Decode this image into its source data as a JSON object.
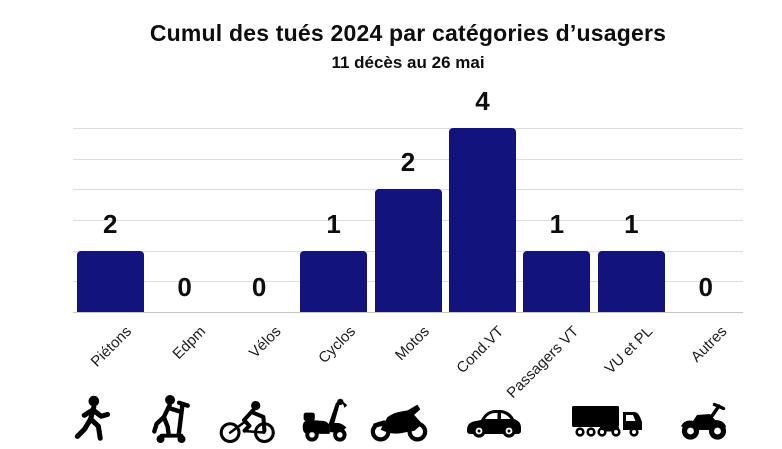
{
  "header": {
    "title": "Cumul des tués 2024 par catégories d’usagers",
    "subtitle": "11 décès au 26 mai"
  },
  "chart_data": {
    "type": "bar",
    "title": "Cumul des tués 2024 par catégories d’usagers",
    "subtitle": "11 décès au 26 mai",
    "categories": [
      "Piétons",
      "Edpm",
      "Vélos",
      "Cyclos",
      "Motos",
      "Cond.VT",
      "Passagers VT",
      "VU et PL",
      "Autres"
    ],
    "values": [
      2,
      0,
      0,
      1,
      2,
      4,
      1,
      1,
      0
    ],
    "slugs": [
      "pietons",
      "edpm",
      "velos",
      "cyclos",
      "motos",
      "cond-vt",
      "passagers-vt",
      "vu-et-pl",
      "autres"
    ],
    "display_heights_units": [
      1,
      0,
      0,
      1,
      2,
      3,
      1,
      1,
      0
    ],
    "ylim": [
      0,
      3
    ],
    "gridline_step": 0.5,
    "grid": true,
    "legend": "none",
    "xlabel": "",
    "ylabel": "",
    "bar_color": "#13137E",
    "gridline_color": "#dedede",
    "value_label_color": "#0d0d0d"
  },
  "icons": [
    {
      "name": "pedestrian-icon",
      "category": "Piétons"
    },
    {
      "name": "kick-scooter-icon",
      "category": "Edpm"
    },
    {
      "name": "bicycle-icon",
      "category": "Vélos"
    },
    {
      "name": "moped-icon",
      "category": "Cyclos"
    },
    {
      "name": "motorcycle-icon",
      "category": "Motos"
    },
    {
      "name": "car-icon",
      "category": "Cond.VT / Passagers VT"
    },
    {
      "name": "truck-icon",
      "category": "VU et PL"
    },
    {
      "name": "quad-icon",
      "category": "Autres"
    }
  ]
}
